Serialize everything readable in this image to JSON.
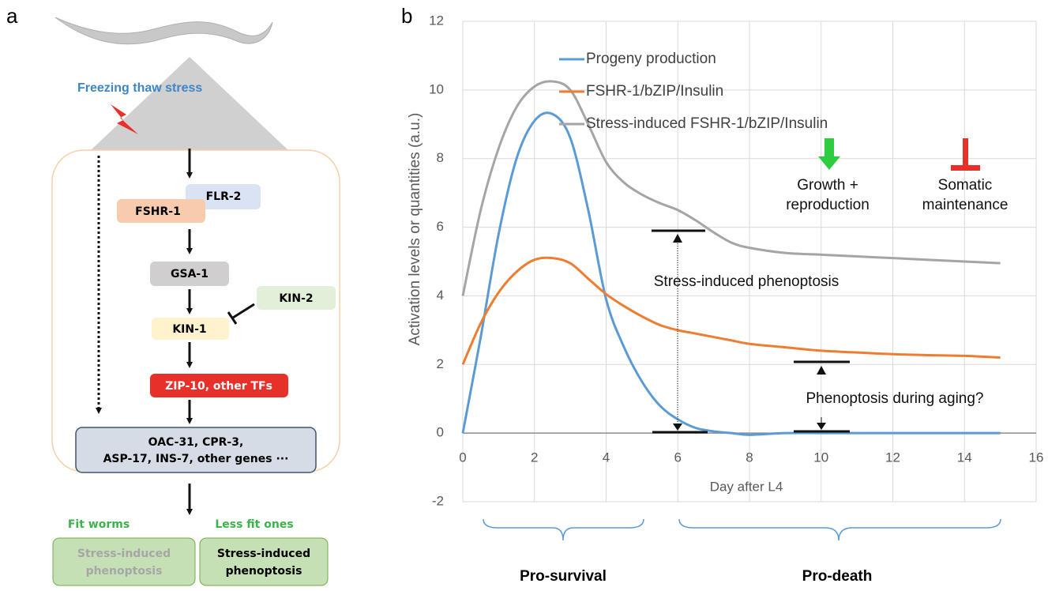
{
  "panel_a": {
    "label": "a",
    "stress": "Freezing thaw stress",
    "nodes": [
      "FSHR-1",
      "FLR-2",
      "GSA-1",
      "KIN-2",
      "KIN-1",
      "ZIP-10, other TFs"
    ],
    "targets": [
      "OAC-31, CPR-3,",
      "ASP-17, INS-7, other genes ···"
    ],
    "outcomes": [
      {
        "heading": "Fit worms",
        "box": [
          "Stress-induced",
          "phenoptosis"
        ]
      },
      {
        "heading": "Less fit ones",
        "box": [
          "Stress-induced",
          "phenoptosis"
        ]
      }
    ]
  },
  "chart_data": {
    "type": "line",
    "label": "b",
    "x_label": "Day after L4",
    "y_label": "Activation levels or quantities (a.u.)",
    "x": [
      0,
      0.5,
      1,
      1.5,
      2,
      2.5,
      3,
      3.5,
      4,
      4.5,
      5,
      5.5,
      6,
      6.5,
      7,
      7.5,
      8,
      9,
      10,
      11,
      12,
      13,
      14,
      15
    ],
    "series": [
      {
        "name": "Progeny production",
        "color": "#5b9bd5",
        "values": [
          0,
          2.8,
          5.8,
          8.0,
          9.1,
          9.3,
          8.6,
          6.5,
          3.9,
          2.5,
          1.5,
          0.8,
          0.4,
          0.15,
          0.05,
          0,
          -0.05,
          0,
          0,
          0,
          0,
          0,
          0,
          0
        ]
      },
      {
        "name": "FSHR-1/bZIP/Insulin",
        "color": "#ed7d31",
        "values": [
          2,
          3.2,
          4.1,
          4.7,
          5.05,
          5.1,
          4.95,
          4.5,
          4.05,
          3.7,
          3.4,
          3.15,
          3.0,
          2.9,
          2.8,
          2.7,
          2.6,
          2.5,
          2.4,
          2.35,
          2.3,
          2.27,
          2.25,
          2.2
        ]
      },
      {
        "name": "Stress-induced FSHR-1/bZIP/Insulin",
        "color": "#a5a5a5",
        "values": [
          4.0,
          6.5,
          8.3,
          9.5,
          10.1,
          10.25,
          10.0,
          9.0,
          7.9,
          7.3,
          6.95,
          6.7,
          6.5,
          6.2,
          5.85,
          5.55,
          5.4,
          5.25,
          5.2,
          5.15,
          5.1,
          5.05,
          5.0,
          4.95
        ]
      }
    ],
    "xlim": [
      0,
      16
    ],
    "xticks": [
      0,
      2,
      4,
      6,
      8,
      10,
      12,
      14,
      16
    ],
    "ylim": [
      -2,
      12
    ],
    "yticks": [
      -2,
      0,
      2,
      4,
      6,
      8,
      10,
      12
    ],
    "grid": true,
    "annotations": [
      "Stress-induced phenoptosis",
      "Phenoptosis during aging?",
      "Growth +",
      "reproduction",
      "Somatic",
      "maintenance",
      "Pro-survival",
      "Pro-death"
    ]
  }
}
